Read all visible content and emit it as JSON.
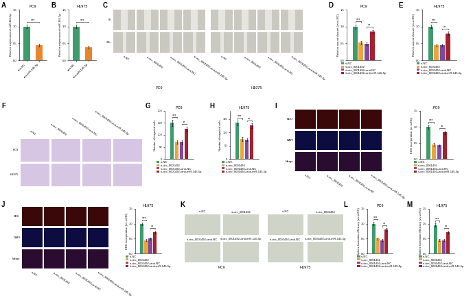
{
  "chart_data": [
    {
      "panel": "A",
      "type": "bar",
      "title": "PC9",
      "y_label": "Relative expression of miR-145-5p",
      "categories": [
        "anti-NC",
        "anti-miR-145-5p"
      ],
      "values": [
        1.0,
        0.45
      ],
      "errors": [
        0.05,
        0.04
      ],
      "colors": [
        "#3d9b6e",
        "#e8862e"
      ],
      "ylim": [
        0.0,
        1.5
      ],
      "yticks": [
        0.0,
        0.5,
        1.0,
        1.5
      ],
      "grid": false,
      "annotations": [
        {
          "text": "***",
          "between": [
            "anti-NC",
            "anti-miR-145-5p"
          ]
        }
      ]
    },
    {
      "panel": "B",
      "type": "bar",
      "title": "H1975",
      "y_label": "Relative expression of miR-145-5p",
      "categories": [
        "anti-NC",
        "anti-miR-145-5p"
      ],
      "values": [
        1.0,
        0.38
      ],
      "errors": [
        0.05,
        0.04
      ],
      "colors": [
        "#3d9b6e",
        "#e8862e"
      ],
      "ylim": [
        0.0,
        1.5
      ],
      "yticks": [
        0.0,
        0.5,
        1.0,
        1.5
      ],
      "grid": false,
      "annotations": [
        {
          "text": "***",
          "between": [
            "anti-NC",
            "anti-miR-145-5p"
          ]
        }
      ]
    },
    {
      "panel": "D",
      "type": "bar",
      "title": "PC9",
      "y_label": "Relative wound closure (vs.si-NC)",
      "categories": [
        null
      ],
      "tick_labels": "y",
      "legend": "upper center",
      "grid": false,
      "series": [
        {
          "name": "si-NC",
          "color": "#3d9b6e",
          "values": [
            1.0
          ],
          "errors": [
            0.06
          ]
        },
        {
          "name": "si-circ_0001492",
          "color": "#eea43a",
          "values": [
            0.52
          ],
          "errors": [
            0.05
          ]
        },
        {
          "name": "si-circ_0001492+anti-NC",
          "color": "#7e4a9e",
          "values": [
            0.48
          ],
          "errors": [
            0.04
          ]
        },
        {
          "name": "si-circ_0001492+anti-miR-145-5p",
          "color": "#a3222e",
          "values": [
            0.85
          ],
          "errors": [
            0.05
          ]
        }
      ],
      "ylim": [
        0.0,
        1.5
      ],
      "yticks": [
        0.0,
        0.5,
        1.0,
        1.5
      ],
      "annotations": [
        {
          "text": "***",
          "between": [
            "si-NC",
            "si-circ_0001492"
          ]
        },
        {
          "text": "**",
          "between": [
            "si-circ_0001492+anti-NC",
            "si-circ_0001492+anti-miR-145-5p"
          ]
        }
      ]
    },
    {
      "panel": "E",
      "type": "bar",
      "title": "H1975",
      "y_label": "Relative wound closure (vs.si-NC)",
      "categories": [
        null
      ],
      "tick_labels": "y",
      "legend": "upper center",
      "grid": false,
      "series": [
        {
          "name": "si-NC",
          "color": "#3d9b6e",
          "values": [
            1.0
          ],
          "errors": [
            0.05
          ]
        },
        {
          "name": "si-circ_0001492",
          "color": "#eea43a",
          "values": [
            0.45
          ],
          "errors": [
            0.04
          ]
        },
        {
          "name": "si-circ_0001492+anti-NC",
          "color": "#7e4a9e",
          "values": [
            0.45
          ],
          "errors": [
            0.04
          ]
        },
        {
          "name": "si-circ_0001492+anti-miR-145-5p",
          "color": "#a3222e",
          "values": [
            0.8
          ],
          "errors": [
            0.05
          ]
        }
      ],
      "ylim": [
        0.0,
        1.5
      ],
      "yticks": [
        0.0,
        0.5,
        1.0,
        1.5
      ],
      "annotations": [
        {
          "text": "***",
          "between": [
            "si-NC",
            "si-circ_0001492"
          ]
        },
        {
          "text": "**",
          "between": [
            "si-circ_0001492+anti-NC",
            "si-circ_0001492+anti-miR-145-5p"
          ]
        }
      ]
    },
    {
      "panel": "G",
      "type": "bar",
      "title": "PC9",
      "y_label": "Number of migrated cells",
      "categories": [
        null
      ],
      "tick_labels": "y",
      "legend": "upper center",
      "grid": false,
      "series": [
        {
          "name": "si-NC",
          "color": "#3d9b6e",
          "values": [
            150
          ],
          "errors": [
            12
          ]
        },
        {
          "name": "si-circ_0001492",
          "color": "#eea43a",
          "values": [
            70
          ],
          "errors": [
            8
          ]
        },
        {
          "name": "si-circ_0001492+anti-NC",
          "color": "#7e4a9e",
          "values": [
            70
          ],
          "errors": [
            9
          ]
        },
        {
          "name": "si-circ_0001492+anti-miR-145-5p",
          "color": "#a3222e",
          "values": [
            125
          ],
          "errors": [
            10
          ]
        }
      ],
      "ylim": [
        0,
        200
      ],
      "yticks": [
        0,
        50,
        100,
        150,
        200
      ],
      "annotations": [
        {
          "text": "***",
          "between": [
            "si-NC",
            "si-circ_0001492"
          ]
        },
        {
          "text": "**",
          "between": [
            "si-circ_0001492+anti-NC",
            "si-circ_0001492+anti-miR-145-5p"
          ]
        }
      ]
    },
    {
      "panel": "H",
      "type": "bar",
      "title": "H1975",
      "y_label": "Number of migrated cells",
      "categories": [
        null
      ],
      "tick_labels": "y",
      "legend": "upper center",
      "grid": false,
      "series": [
        {
          "name": "si-NC",
          "color": "#3d9b6e",
          "values": [
            135
          ],
          "errors": [
            8
          ]
        },
        {
          "name": "si-circ_0001492",
          "color": "#eea43a",
          "values": [
            75
          ],
          "errors": [
            7
          ]
        },
        {
          "name": "si-circ_0001492+anti-NC",
          "color": "#7e4a9e",
          "values": [
            72
          ],
          "errors": [
            6
          ]
        },
        {
          "name": "si-circ_0001492+anti-miR-145-5p",
          "color": "#a3222e",
          "values": [
            125
          ],
          "errors": [
            9
          ]
        }
      ],
      "ylim": [
        0,
        180
      ],
      "yticks": [
        0,
        50,
        100,
        150
      ],
      "annotations": [
        {
          "text": "***",
          "between": [
            "si-NC",
            "si-circ_0001492"
          ]
        },
        {
          "text": "**",
          "between": [
            "si-circ_0001492+anti-NC",
            "si-circ_0001492+anti-miR-145-5p"
          ]
        }
      ]
    },
    {
      "type": "bar",
      "title": "PC9",
      "y_label": "EDU incorporation (vs.si-NC)",
      "categories": [
        null
      ],
      "tick_labels": "y",
      "legend": "upper center",
      "grid": false,
      "series": [
        {
          "name": "si-NC",
          "color": "#3d9b6e",
          "values": [
            1.0
          ],
          "errors": [
            0.06
          ]
        },
        {
          "name": "si-circ_0001492",
          "color": "#eea43a",
          "values": [
            0.45
          ],
          "errors": [
            0.05
          ]
        },
        {
          "name": "si-circ_0001492+anti-NC",
          "color": "#7e4a9e",
          "values": [
            0.42
          ],
          "errors": [
            0.04
          ]
        },
        {
          "name": "si-circ_0001492+anti-miR-145-5p",
          "color": "#a3222e",
          "values": [
            0.83
          ],
          "errors": [
            0.05
          ]
        }
      ],
      "ylim": [
        0.0,
        1.5
      ],
      "yticks": [
        0.0,
        0.5,
        1.0,
        1.5
      ],
      "annotations": [
        {
          "text": "***",
          "between": [
            "si-NC",
            "si-circ_0001492"
          ]
        },
        {
          "text": "**",
          "between": [
            "si-circ_0001492+anti-NC",
            "si-circ_0001492+anti-miR-145-5p"
          ]
        }
      ]
    },
    {
      "type": "bar",
      "title": "H1975",
      "y_label": "EDU incorporation (vs.si-NC)",
      "categories": [
        null
      ],
      "tick_labels": "y",
      "legend": "upper center",
      "grid": false,
      "series": [
        {
          "name": "si-NC",
          "color": "#3d9b6e",
          "values": [
            1.0
          ],
          "errors": [
            0.05
          ]
        },
        {
          "name": "si-circ_0001492",
          "color": "#eea43a",
          "values": [
            0.45
          ],
          "errors": [
            0.04
          ]
        },
        {
          "name": "si-circ_0001492+anti-NC",
          "color": "#7e4a9e",
          "values": [
            0.5
          ],
          "errors": [
            0.04
          ]
        },
        {
          "name": "si-circ_0001492+anti-miR-145-5p",
          "color": "#a3222e",
          "values": [
            0.72
          ],
          "errors": [
            0.05
          ]
        }
      ],
      "ylim": [
        0.0,
        1.5
      ],
      "yticks": [
        0.0,
        0.5,
        1.0,
        1.5
      ],
      "annotations": [
        {
          "text": "***",
          "between": [
            "si-NC",
            "si-circ_0001492"
          ]
        },
        {
          "text": "**",
          "between": [
            "si-circ_0001492+anti-NC",
            "si-circ_0001492+anti-miR-145-5p"
          ]
        }
      ]
    },
    {
      "panel": "L",
      "type": "bar",
      "title": "PC9",
      "y_label": "Sphere formation efficiency (vs.si-NC)",
      "categories": [
        null
      ],
      "tick_labels": "y",
      "legend": "upper center",
      "grid": false,
      "series": [
        {
          "name": "si-NC",
          "color": "#3d9b6e",
          "values": [
            1.0
          ],
          "errors": [
            0.06
          ]
        },
        {
          "name": "si-circ_0001492",
          "color": "#eea43a",
          "values": [
            0.5
          ],
          "errors": [
            0.04
          ]
        },
        {
          "name": "si-circ_0001492+anti-NC",
          "color": "#7e4a9e",
          "values": [
            0.45
          ],
          "errors": [
            0.04
          ]
        },
        {
          "name": "si-circ_0001492+anti-miR-145-5p",
          "color": "#a3222e",
          "values": [
            0.8
          ],
          "errors": [
            0.05
          ]
        }
      ],
      "ylim": [
        0.0,
        1.5
      ],
      "yticks": [
        0.0,
        0.5,
        1.0,
        1.5
      ],
      "annotations": [
        {
          "text": "***",
          "between": [
            "si-NC",
            "si-circ_0001492"
          ]
        },
        {
          "text": "**",
          "between": [
            "si-circ_0001492+anti-NC",
            "si-circ_0001492+anti-miR-145-5p"
          ]
        }
      ]
    },
    {
      "panel": "M",
      "type": "bar",
      "title": "H1975",
      "y_label": "Sphere formation efficiency (vs.si-NC)",
      "categories": [
        null
      ],
      "tick_labels": "y",
      "legend": "upper center",
      "grid": false,
      "series": [
        {
          "name": "si-NC",
          "color": "#3d9b6e",
          "values": [
            0.95
          ],
          "errors": [
            0.06
          ]
        },
        {
          "name": "si-circ_0001492",
          "color": "#eea43a",
          "values": [
            0.45
          ],
          "errors": [
            0.04
          ]
        },
        {
          "name": "si-circ_0001492+anti-NC",
          "color": "#7e4a9e",
          "values": [
            0.45
          ],
          "errors": [
            0.04
          ]
        },
        {
          "name": "si-circ_0001492+anti-miR-145-5p",
          "color": "#a3222e",
          "values": [
            0.72
          ],
          "errors": [
            0.05
          ]
        }
      ],
      "ylim": [
        0.0,
        1.5
      ],
      "yticks": [
        0.0,
        0.5,
        1.0,
        1.5
      ],
      "annotations": [
        {
          "text": "***",
          "between": [
            "si-NC",
            "si-circ_0001492"
          ]
        },
        {
          "text": "**",
          "between": [
            "si-circ_0001492+anti-NC",
            "si-circ_0001492+anti-miR-145-5p"
          ]
        }
      ]
    }
  ],
  "image_panels": {
    "C": {
      "panel": "C",
      "rows": [
        "0h",
        "24h"
      ],
      "groups": [
        {
          "name": "PC9",
          "columns": [
            "si-NC",
            "si-circ_0001492",
            "si-circ_0001492+anti-NC",
            "si-circ_0001492+anti-miR-145-5p"
          ]
        },
        {
          "name": "H1975",
          "columns": [
            "si-NC",
            "si-circ_0001492",
            "si-circ_0001492+anti-NC",
            "si-circ_0001492+anti-miR-145-5p"
          ]
        }
      ]
    },
    "F": {
      "panel": "F",
      "rows": [
        "PC9",
        "H1975"
      ],
      "columns": [
        "si-NC",
        "si-circ_0001492",
        "si-circ_0001492+anti-NC",
        "si-circ_0001492+anti-miR-145-5p"
      ]
    },
    "I": {
      "panel": "I",
      "rows": [
        "EDU",
        "DAPI",
        "Merge"
      ],
      "columns": [
        "si-NC",
        "si-circ_0001492",
        "si-circ_0001492+anti-NC",
        "si-circ_0001492+anti-miR-145-5p"
      ]
    },
    "J": {
      "panel": "J",
      "rows": [
        "EDU",
        "DAPI",
        "Merge"
      ],
      "columns": [
        "si-NC",
        "si-circ_0001492",
        "si-circ_0001492+anti-NC",
        "si-circ_0001492+anti-miR-145-5p"
      ]
    },
    "K": {
      "panel": "K",
      "groups": [
        {
          "name": "PC9",
          "cells": [
            [
              "si-NC",
              "si-circ_0001492"
            ],
            [
              "si-circ_0001492+anti-NC",
              "si-circ_0001492+anti-miR-145-5p"
            ]
          ]
        },
        {
          "name": "H1975",
          "cells": [
            [
              "si-NC",
              "si-circ_0001492"
            ],
            [
              "si-circ_0001492+anti-NC",
              "si-circ_0001492+anti-miR-145-5p"
            ]
          ]
        }
      ]
    }
  }
}
